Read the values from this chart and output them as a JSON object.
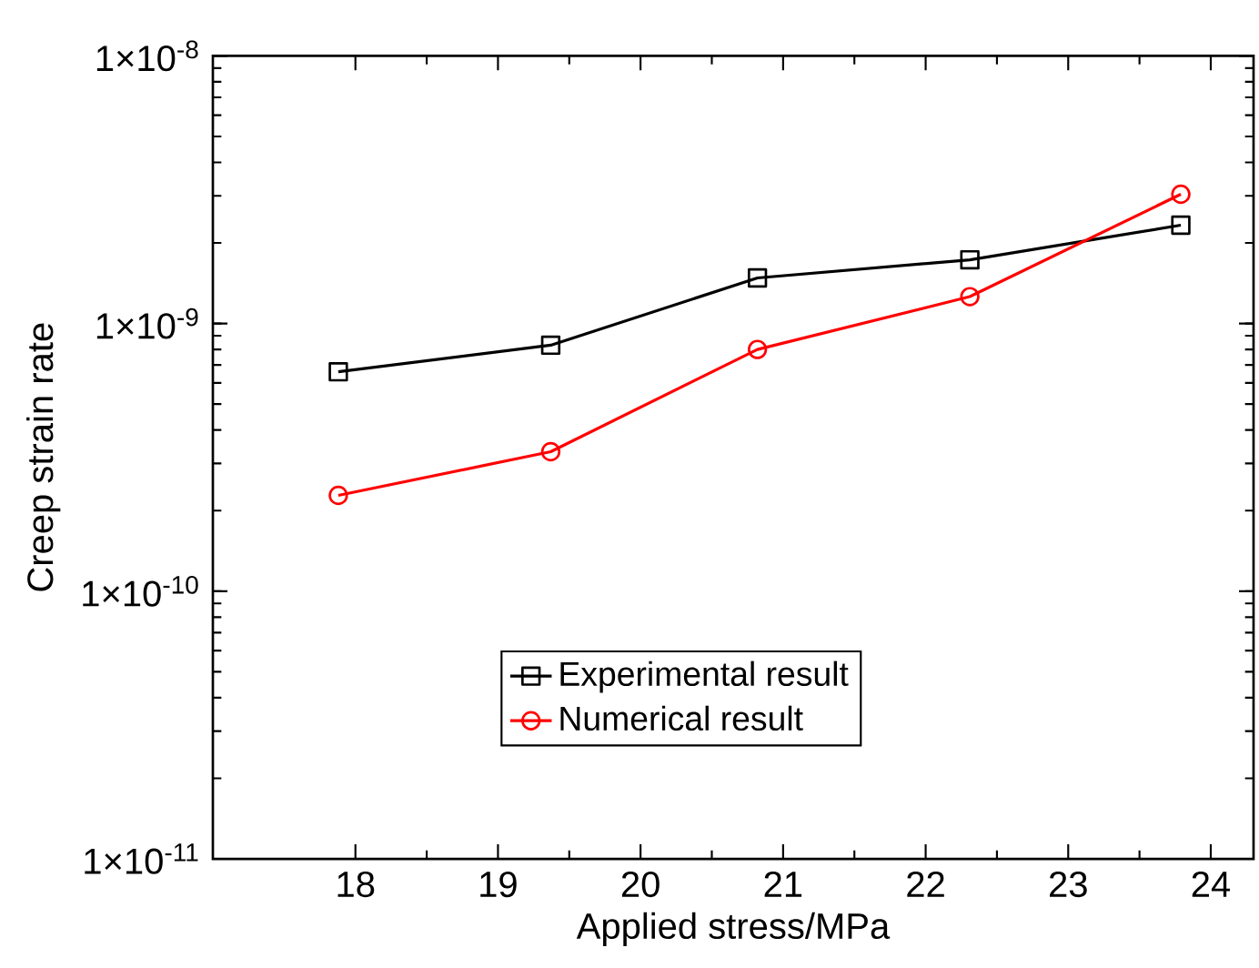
{
  "chart_data": {
    "type": "line",
    "xlabel": "Applied stress/MPa",
    "ylabel": "Creep strain rate",
    "log": "y",
    "xlim": [
      17,
      24.3
    ],
    "xticks": [
      18,
      19,
      20,
      21,
      22,
      23,
      24
    ],
    "ylim": [
      1e-11,
      1e-08
    ],
    "yticks": [
      {
        "value": 1e-11,
        "label": "1×10$^{-11}$"
      },
      {
        "value": 1e-10,
        "label": "1×10$^{-10}$"
      },
      {
        "value": 1e-09,
        "label": "1×10$^{-9}$"
      },
      {
        "value": 1e-08,
        "label": "1×10$^{-8}$"
      }
    ],
    "legend": "bottom",
    "grid": false,
    "line_style": "solid",
    "series": [
      {
        "name": "Experimental result",
        "color": "#000000",
        "marker": "square",
        "x": [
          17.88,
          19.37,
          20.82,
          22.31,
          23.79
        ],
        "values": [
          6.6e-10,
          8.3e-10,
          1.48e-09,
          1.73e-09,
          2.33e-09
        ]
      },
      {
        "name": "Numerical result",
        "color": "#ff0000",
        "marker": "circle",
        "x": [
          17.88,
          19.37,
          20.82,
          22.31,
          23.79
        ],
        "values": [
          2.28e-10,
          3.32e-10,
          8e-10,
          1.26e-09,
          3.04e-09
        ]
      }
    ]
  }
}
